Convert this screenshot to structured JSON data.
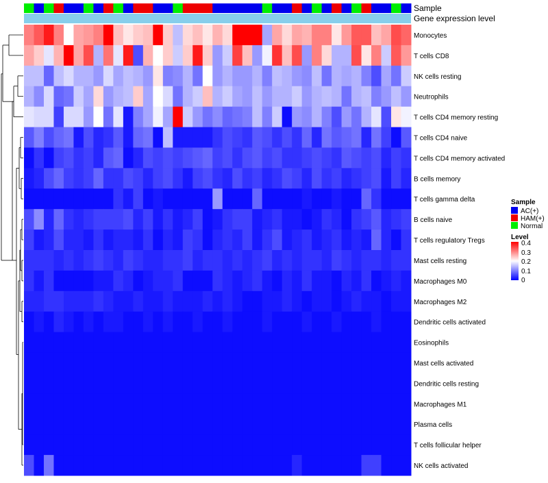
{
  "chart_data": {
    "type": "heatmap",
    "annotation_labels": [
      "Sample",
      "Gene expression level"
    ],
    "row_labels": [
      "Monocytes",
      "T cells CD8",
      "NK cells resting",
      "Neutrophils",
      "T cells CD4 memory resting",
      "T cells CD4 naive",
      "T cells CD4 memory activated",
      "B cells memory",
      "T cells gamma delta",
      "B cells naive",
      "T cells regulatory  Tregs",
      "Mast cells resting",
      "Macrophages M0",
      "Macrophages M2",
      "Dendritic cells activated",
      "Eosinophils",
      "Mast cells activated",
      "Dendritic cells resting",
      "Macrophages M1",
      "Plasma cells",
      "T cells follicular helper",
      "NK cells activated"
    ],
    "sample_groups": [
      "Normal",
      "AC(+)",
      "Normal",
      "HAM(+)",
      "AC(+)",
      "AC(+)",
      "Normal",
      "AC(+)",
      "HAM(+)",
      "Normal",
      "AC(+)",
      "HAM(+)",
      "HAM(+)",
      "AC(+)",
      "AC(+)",
      "Normal",
      "HAM(+)",
      "HAM(+)",
      "HAM(+)",
      "AC(+)",
      "AC(+)",
      "AC(+)",
      "AC(+)",
      "AC(+)",
      "Normal",
      "AC(+)",
      "AC(+)",
      "HAM(+)",
      "AC(+)",
      "Normal",
      "AC(+)",
      "HAM(+)",
      "AC(+)",
      "Normal",
      "HAM(+)",
      "AC(+)",
      "AC(+)",
      "Normal",
      "AC(+)"
    ],
    "gene_expression_level_color": "#87ceeb",
    "sample_colors": {
      "AC(+)": "#0000ee",
      "HAM(+)": "#ee0000",
      "Normal": "#00ee00"
    },
    "legend": {
      "sample_title": "Sample",
      "sample_entries": [
        "AC(+)",
        "HAM(+)",
        "Normal"
      ],
      "level_title": "Level",
      "level_ticks": [
        "0.4",
        "0.3",
        "0.2",
        "0.1",
        "0"
      ],
      "level_range": [
        0,
        0.4
      ],
      "color_scale": [
        "#0000ff",
        "#ffffff",
        "#ff0000"
      ]
    },
    "values": [
      [
        0.3,
        0.33,
        0.38,
        0.3,
        0.2,
        0.27,
        0.28,
        0.3,
        0.4,
        0.25,
        0.22,
        0.24,
        0.25,
        0.4,
        0.24,
        0.15,
        0.23,
        0.25,
        0.22,
        0.26,
        0.23,
        0.4,
        0.4,
        0.4,
        0.13,
        0.27,
        0.23,
        0.27,
        0.26,
        0.3,
        0.3,
        0.22,
        0.28,
        0.33,
        0.33,
        0.25,
        0.27,
        0.34,
        0.32
      ],
      [
        0.27,
        0.24,
        0.18,
        0.26,
        0.4,
        0.27,
        0.34,
        0.14,
        0.31,
        0.18,
        0.38,
        0.06,
        0.26,
        0.2,
        0.24,
        0.16,
        0.24,
        0.38,
        0.24,
        0.12,
        0.16,
        0.35,
        0.25,
        0.12,
        0.19,
        0.36,
        0.25,
        0.34,
        0.12,
        0.3,
        0.23,
        0.14,
        0.14,
        0.34,
        0.22,
        0.3,
        0.16,
        0.33,
        0.28
      ],
      [
        0.15,
        0.15,
        0.08,
        0.15,
        0.17,
        0.14,
        0.14,
        0.12,
        0.17,
        0.13,
        0.15,
        0.14,
        0.12,
        0.22,
        0.1,
        0.11,
        0.14,
        0.09,
        0.2,
        0.12,
        0.14,
        0.12,
        0.12,
        0.14,
        0.1,
        0.15,
        0.14,
        0.12,
        0.11,
        0.15,
        0.09,
        0.14,
        0.13,
        0.14,
        0.1,
        0.06,
        0.13,
        0.09,
        0.16
      ],
      [
        0.14,
        0.11,
        0.17,
        0.08,
        0.09,
        0.16,
        0.13,
        0.23,
        0.12,
        0.14,
        0.15,
        0.24,
        0.13,
        0.2,
        0.17,
        0.09,
        0.14,
        0.16,
        0.25,
        0.14,
        0.16,
        0.13,
        0.12,
        0.15,
        0.12,
        0.14,
        0.14,
        0.16,
        0.12,
        0.14,
        0.15,
        0.14,
        0.09,
        0.14,
        0.15,
        0.1,
        0.12,
        0.15,
        0.12
      ],
      [
        0.18,
        0.17,
        0.17,
        0.05,
        0.17,
        0.17,
        0.12,
        0.2,
        0.09,
        0.18,
        0.02,
        0.1,
        0.13,
        0.19,
        0.13,
        0.4,
        0.16,
        0.12,
        0.09,
        0.11,
        0.08,
        0.09,
        0.1,
        0.15,
        0.1,
        0.16,
        0.01,
        0.12,
        0.11,
        0.14,
        0.1,
        0.06,
        0.12,
        0.09,
        0.14,
        0.18,
        0.06,
        0.22,
        0.19
      ],
      [
        0.07,
        0.1,
        0.06,
        0.08,
        0.09,
        0.02,
        0.06,
        0.03,
        0.04,
        0.07,
        0.02,
        0.08,
        0.09,
        0.01,
        0.15,
        0.02,
        0.02,
        0.02,
        0.02,
        0.04,
        0.06,
        0.05,
        0.04,
        0.07,
        0.06,
        0.04,
        0.06,
        0.04,
        0.08,
        0.03,
        0.09,
        0.07,
        0.08,
        0.09,
        0.03,
        0.09,
        0.05,
        0.01,
        0.07
      ],
      [
        0.01,
        0.04,
        0.01,
        0.05,
        0.06,
        0.04,
        0.05,
        0.03,
        0.07,
        0.08,
        0.01,
        0.03,
        0.06,
        0.05,
        0.06,
        0.05,
        0.06,
        0.07,
        0.08,
        0.05,
        0.06,
        0.04,
        0.06,
        0.07,
        0.05,
        0.06,
        0.04,
        0.04,
        0.05,
        0.06,
        0.05,
        0.04,
        0.07,
        0.06,
        0.05,
        0.06,
        0.03,
        0.05,
        0.04
      ],
      [
        0.02,
        0.03,
        0.06,
        0.08,
        0.05,
        0.04,
        0.05,
        0.08,
        0.04,
        0.04,
        0.06,
        0.05,
        0.03,
        0.05,
        0.06,
        0.04,
        0.02,
        0.05,
        0.06,
        0.04,
        0.03,
        0.06,
        0.04,
        0.05,
        0.03,
        0.04,
        0.06,
        0.05,
        0.03,
        0.06,
        0.04,
        0.05,
        0.03,
        0.04,
        0.05,
        0.06,
        0.02,
        0.05,
        0.03
      ],
      [
        0.01,
        0.01,
        0.01,
        0.01,
        0.01,
        0.01,
        0.01,
        0.01,
        0.01,
        0.04,
        0.02,
        0.05,
        0.01,
        0.02,
        0.01,
        0.01,
        0.01,
        0.01,
        0.01,
        0.12,
        0.01,
        0.01,
        0.01,
        0.08,
        0.01,
        0.01,
        0.01,
        0.01,
        0.02,
        0.01,
        0.01,
        0.02,
        0.01,
        0.01,
        0.08,
        0.04,
        0.01,
        0.01,
        0.01
      ],
      [
        0.06,
        0.11,
        0.03,
        0.08,
        0.04,
        0.03,
        0.04,
        0.05,
        0.05,
        0.05,
        0.06,
        0.03,
        0.05,
        0.02,
        0.04,
        0.02,
        0.03,
        0.05,
        0.01,
        0.02,
        0.04,
        0.05,
        0.05,
        0.02,
        0.03,
        0.04,
        0.02,
        0.02,
        0.01,
        0.02,
        0.04,
        0.03,
        0.01,
        0.04,
        0.05,
        0.07,
        0.03,
        0.04,
        0.05
      ],
      [
        0.05,
        0.02,
        0.03,
        0.06,
        0.03,
        0.03,
        0.02,
        0.04,
        0.02,
        0.03,
        0.03,
        0.02,
        0.04,
        0.01,
        0.03,
        0.02,
        0.05,
        0.04,
        0.01,
        0.03,
        0.04,
        0.03,
        0.05,
        0.02,
        0.04,
        0.06,
        0.02,
        0.03,
        0.04,
        0.02,
        0.03,
        0.04,
        0.02,
        0.03,
        0.02,
        0.08,
        0.03,
        0.01,
        0.04
      ],
      [
        0.04,
        0.04,
        0.04,
        0.03,
        0.04,
        0.03,
        0.04,
        0.05,
        0.04,
        0.03,
        0.05,
        0.04,
        0.03,
        0.03,
        0.04,
        0.04,
        0.05,
        0.03,
        0.04,
        0.04,
        0.03,
        0.04,
        0.03,
        0.04,
        0.05,
        0.03,
        0.04,
        0.03,
        0.04,
        0.04,
        0.03,
        0.05,
        0.04,
        0.03,
        0.04,
        0.04,
        0.03,
        0.04,
        0.04
      ],
      [
        0.04,
        0.02,
        0.04,
        0.01,
        0.01,
        0.01,
        0.01,
        0.02,
        0.02,
        0.04,
        0.03,
        0.01,
        0.02,
        0.03,
        0.03,
        0.04,
        0.01,
        0.01,
        0.01,
        0.04,
        0.03,
        0.02,
        0.03,
        0.04,
        0.02,
        0.01,
        0.03,
        0.02,
        0.04,
        0.02,
        0.02,
        0.01,
        0.03,
        0.02,
        0.04,
        0.01,
        0.02,
        0.03,
        0.02
      ],
      [
        0.03,
        0.03,
        0.04,
        0.04,
        0.03,
        0.03,
        0.03,
        0.04,
        0.03,
        0.02,
        0.02,
        0.03,
        0.02,
        0.02,
        0.03,
        0.02,
        0.02,
        0.02,
        0.03,
        0.02,
        0.03,
        0.02,
        0.01,
        0.01,
        0.02,
        0.02,
        0.03,
        0.02,
        0.01,
        0.02,
        0.02,
        0.01,
        0.02,
        0.03,
        0.02,
        0.02,
        0.01,
        0.02,
        0.02
      ],
      [
        0.01,
        0.02,
        0.01,
        0.03,
        0.02,
        0.01,
        0.02,
        0.01,
        0.02,
        0.02,
        0.01,
        0.01,
        0.02,
        0.01,
        0.02,
        0.01,
        0.01,
        0.02,
        0.01,
        0.01,
        0.02,
        0.01,
        0.01,
        0.01,
        0.02,
        0.01,
        0.01,
        0.01,
        0.02,
        0.01,
        0.01,
        0.02,
        0.01,
        0.01,
        0.01,
        0.02,
        0.01,
        0.01,
        0.01
      ],
      [
        0.01,
        0.01,
        0.01,
        0.01,
        0.01,
        0.01,
        0.01,
        0.01,
        0.01,
        0.01,
        0.01,
        0.01,
        0.01,
        0.01,
        0.01,
        0.01,
        0.01,
        0.01,
        0.01,
        0.01,
        0.01,
        0.01,
        0.01,
        0.01,
        0.01,
        0.01,
        0.01,
        0.01,
        0.01,
        0.01,
        0.01,
        0.01,
        0.01,
        0.01,
        0.01,
        0.01,
        0.01,
        0.01,
        0.01
      ],
      [
        0.01,
        0.01,
        0.01,
        0.01,
        0.01,
        0.01,
        0.01,
        0.01,
        0.01,
        0.01,
        0.01,
        0.01,
        0.01,
        0.01,
        0.01,
        0.01,
        0.01,
        0.01,
        0.01,
        0.01,
        0.01,
        0.01,
        0.01,
        0.01,
        0.01,
        0.01,
        0.01,
        0.01,
        0.01,
        0.01,
        0.01,
        0.01,
        0.01,
        0.01,
        0.01,
        0.01,
        0.01,
        0.01,
        0.01
      ],
      [
        0.01,
        0.01,
        0.01,
        0.01,
        0.01,
        0.01,
        0.01,
        0.01,
        0.01,
        0.01,
        0.01,
        0.01,
        0.01,
        0.01,
        0.01,
        0.01,
        0.01,
        0.01,
        0.01,
        0.01,
        0.01,
        0.01,
        0.01,
        0.01,
        0.01,
        0.01,
        0.01,
        0.01,
        0.01,
        0.01,
        0.01,
        0.01,
        0.01,
        0.01,
        0.01,
        0.01,
        0.01,
        0.01,
        0.01
      ],
      [
        0.01,
        0.01,
        0.01,
        0.01,
        0.01,
        0.01,
        0.01,
        0.01,
        0.01,
        0.01,
        0.01,
        0.01,
        0.01,
        0.01,
        0.01,
        0.01,
        0.01,
        0.01,
        0.01,
        0.01,
        0.01,
        0.01,
        0.01,
        0.01,
        0.01,
        0.01,
        0.01,
        0.01,
        0.01,
        0.01,
        0.01,
        0.01,
        0.01,
        0.01,
        0.01,
        0.01,
        0.01,
        0.01,
        0.01
      ],
      [
        0.01,
        0.01,
        0.01,
        0.01,
        0.01,
        0.01,
        0.01,
        0.01,
        0.01,
        0.01,
        0.01,
        0.01,
        0.01,
        0.01,
        0.01,
        0.01,
        0.01,
        0.01,
        0.01,
        0.01,
        0.01,
        0.01,
        0.01,
        0.01,
        0.01,
        0.01,
        0.01,
        0.01,
        0.01,
        0.01,
        0.01,
        0.01,
        0.01,
        0.01,
        0.01,
        0.01,
        0.01,
        0.01,
        0.01
      ],
      [
        0.01,
        0.01,
        0.01,
        0.01,
        0.01,
        0.01,
        0.01,
        0.01,
        0.01,
        0.01,
        0.01,
        0.01,
        0.01,
        0.01,
        0.01,
        0.01,
        0.01,
        0.01,
        0.01,
        0.01,
        0.01,
        0.01,
        0.01,
        0.01,
        0.01,
        0.01,
        0.01,
        0.01,
        0.01,
        0.01,
        0.01,
        0.01,
        0.01,
        0.01,
        0.01,
        0.01,
        0.01,
        0.01,
        0.01
      ],
      [
        0.06,
        0.01,
        0.09,
        0.01,
        0.01,
        0.01,
        0.01,
        0.01,
        0.01,
        0.01,
        0.01,
        0.01,
        0.01,
        0.01,
        0.01,
        0.01,
        0.01,
        0.01,
        0.01,
        0.01,
        0.01,
        0.01,
        0.01,
        0.01,
        0.01,
        0.01,
        0.01,
        0.03,
        0.01,
        0.01,
        0.01,
        0.01,
        0.01,
        0.01,
        0.05,
        0.05,
        0.01,
        0.01,
        0.01
      ]
    ]
  }
}
